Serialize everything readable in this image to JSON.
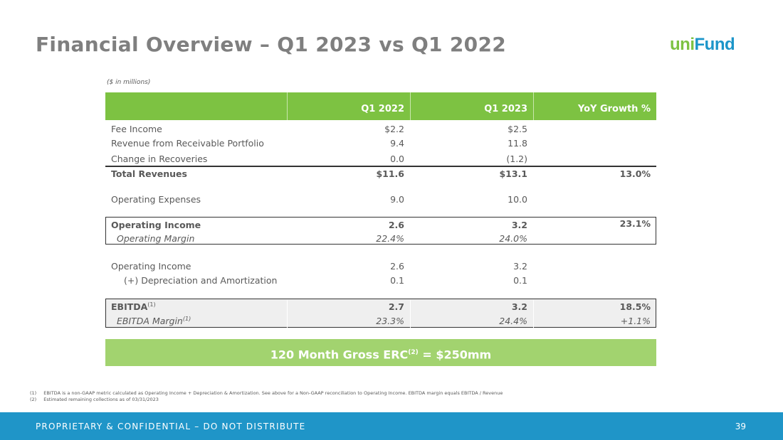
{
  "title": "Financial Overview – Q1 2023 vs Q1 2022",
  "logo": {
    "part1": "uni",
    "part2": "Fund",
    "colors": [
      "#7dc242",
      "#1c95c9"
    ]
  },
  "units": "($ in millions)",
  "table": {
    "headers": [
      "",
      "Q1 2022",
      "Q1 2023",
      "YoY Growth %"
    ],
    "rows": [
      [
        "Fee Income",
        "$2.2",
        "$2.5",
        ""
      ],
      [
        "Revenue from Receivable Portfolio",
        "9.4",
        "11.8",
        ""
      ],
      [
        "Change in Recoveries",
        "0.0",
        "(1.2)",
        ""
      ],
      [
        "Total Revenues",
        "$11.6",
        "$13.1",
        "13.0%"
      ],
      [
        "Operating Expenses",
        "9.0",
        "10.0",
        ""
      ],
      [
        "Operating Income",
        "2.6",
        "3.2",
        "23.1%"
      ],
      [
        "Operating Margin",
        "22.4%",
        "24.0%",
        ""
      ],
      [
        "Operating Income",
        "2.6",
        "3.2",
        ""
      ],
      [
        "(+) Depreciation and Amortization",
        "0.1",
        "0.1",
        ""
      ],
      [
        "EBITDA",
        "2.7",
        "3.2",
        "18.5%"
      ],
      [
        "EBITDA Margin",
        "23.3%",
        "24.4%",
        "+1.1%"
      ]
    ],
    "footnote_ref": "(1)"
  },
  "erc": {
    "pre": "120 Month Gross ERC",
    "sup": "(2)",
    "post": " = $250mm"
  },
  "footnotes": [
    {
      "num": "(1)",
      "text": "EBITDA is a non-GAAP metric calculated as Operating Income + Depreciation & Amortization. See above for a Non-GAAP reconciliation to Operating Income. EBITDA margin equals EBITDA / Revenue"
    },
    {
      "num": "(2)",
      "text": "Estimated remaining collections as of 03/31/2023"
    }
  ],
  "footer": {
    "text": "PROPRIETARY & CONFIDENTIAL – DO NOT DISTRIBUTE",
    "page": "39"
  },
  "colors": {
    "green": "#7dc242",
    "light_green": "#a2d36f",
    "blue": "#1f95c8"
  }
}
